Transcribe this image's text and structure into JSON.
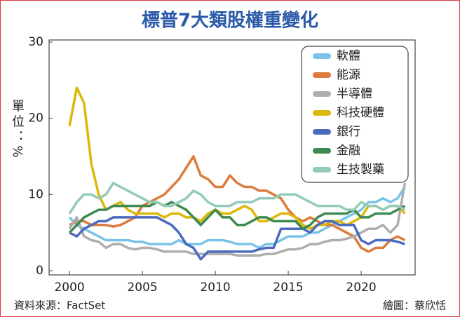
{
  "chart_data": {
    "type": "line",
    "title": "標普7大類股權重變化",
    "y_label": "單位：%",
    "source": "資料來源：FactSet",
    "credit": "繪圖：蔡欣恬",
    "xlim": [
      1998.6,
      2023.7
    ],
    "xticks": [
      2000,
      2005,
      2010,
      2015,
      2020
    ],
    "ylim": [
      0,
      30
    ],
    "yticks": [
      0,
      10,
      20,
      30
    ],
    "x": [
      2000,
      2000.5,
      2001,
      2001.5,
      2002,
      2002.5,
      2003,
      2003.5,
      2004,
      2004.5,
      2005,
      2005.5,
      2006,
      2006.5,
      2007,
      2007.5,
      2008,
      2008.5,
      2009,
      2009.5,
      2010,
      2010.5,
      2011,
      2011.5,
      2012,
      2012.5,
      2013,
      2013.5,
      2014,
      2014.5,
      2015,
      2015.5,
      2016,
      2016.5,
      2017,
      2017.5,
      2018,
      2018.5,
      2019,
      2019.5,
      2020,
      2020.5,
      2021,
      2021.5,
      2022,
      2022.5,
      2023
    ],
    "series": [
      {
        "name": "軟體",
        "color": "#79c4e6",
        "values": [
          7,
          6,
          5.5,
          5,
          4.5,
          4,
          4,
          4,
          4,
          3.8,
          3.8,
          3.5,
          3.5,
          3.5,
          3.5,
          4,
          3.5,
          3.5,
          3.5,
          4,
          4,
          4,
          3.8,
          3.5,
          3.5,
          3.5,
          3,
          3.5,
          3.5,
          4,
          4.5,
          4.5,
          4.5,
          5,
          5,
          5.5,
          6,
          6.5,
          7,
          7.5,
          8,
          9,
          9,
          9.5,
          9,
          9.5,
          11
        ]
      },
      {
        "name": "能源",
        "color": "#dc7c3e",
        "values": [
          6,
          6.5,
          6.5,
          6,
          6,
          6,
          5.8,
          6,
          6.5,
          7,
          8.5,
          9,
          9.5,
          10,
          11,
          12,
          13.5,
          15,
          12.5,
          12,
          11,
          11,
          12.5,
          11.5,
          11,
          11,
          10.5,
          10.5,
          10,
          9.5,
          8,
          7,
          6.5,
          7,
          6.5,
          6,
          6,
          5.5,
          5,
          4.5,
          3,
          2.5,
          3,
          3,
          4,
          4.5,
          4
        ]
      },
      {
        "name": "半導體",
        "color": "#aeaeae",
        "values": [
          5.5,
          7,
          4.5,
          4,
          3.8,
          3,
          3.5,
          3.5,
          3,
          2.8,
          3,
          3,
          2.8,
          2.5,
          2.5,
          2.5,
          2.5,
          2.2,
          2.2,
          2.2,
          2.2,
          2.2,
          2.2,
          2,
          2,
          2,
          2,
          2.2,
          2.2,
          2.5,
          2.8,
          2.8,
          3,
          3.5,
          3.5,
          3.8,
          4,
          4,
          4.2,
          4.5,
          5,
          5.5,
          5.5,
          6,
          5,
          6,
          11.5
        ]
      },
      {
        "name": "科技硬體",
        "color": "#dcb80a",
        "values": [
          19,
          24,
          22,
          14,
          10,
          8,
          8.5,
          9,
          8,
          7.5,
          7.5,
          7.5,
          7.5,
          7,
          7.5,
          7.5,
          7,
          7,
          6.5,
          7.5,
          8,
          7.5,
          7.5,
          8,
          8.5,
          8,
          6.5,
          6.5,
          7,
          7.5,
          7.5,
          7,
          6,
          5.5,
          6,
          6,
          6.5,
          6.5,
          6,
          6.5,
          7,
          8.5,
          8.5,
          8,
          8.5,
          8.5,
          7.5
        ]
      },
      {
        "name": "銀行",
        "color": "#4c6ac0",
        "values": [
          5,
          4.5,
          5.5,
          6,
          6.5,
          6.5,
          7,
          7,
          7,
          7,
          7,
          7,
          7,
          6.5,
          6,
          5,
          3.5,
          3,
          1.5,
          2.5,
          2.5,
          2.5,
          2.5,
          2.5,
          2.5,
          2.5,
          2.8,
          3,
          3,
          5.5,
          5.5,
          5.5,
          5.5,
          5,
          6,
          6.5,
          6.5,
          6,
          6,
          6,
          4,
          3.5,
          4,
          4,
          4,
          3.8,
          3.5
        ]
      },
      {
        "name": "金融",
        "color": "#3f8a50",
        "values": [
          5,
          6,
          7,
          7.5,
          8,
          8,
          8.5,
          8.5,
          8.5,
          8.5,
          8.5,
          8.5,
          9,
          8.5,
          9,
          8.5,
          8,
          7,
          6,
          7,
          8,
          7,
          7,
          6,
          6,
          6.5,
          7,
          7,
          6.5,
          6.5,
          6.5,
          6.5,
          5.5,
          6,
          7,
          7.5,
          7.5,
          7.5,
          7.5,
          8,
          7,
          7,
          7.5,
          7.5,
          7.5,
          8,
          8.5
        ]
      },
      {
        "name": "生技製藥",
        "color": "#93cbb8",
        "values": [
          7.5,
          9,
          10,
          10,
          9.5,
          10,
          11.5,
          11,
          10.5,
          10,
          9.5,
          9,
          9,
          8.5,
          8.5,
          9,
          9.5,
          10.5,
          10,
          9,
          8.5,
          8.5,
          8.5,
          9,
          9,
          9,
          9.5,
          9.5,
          9.5,
          10,
          10,
          10,
          9.5,
          9,
          8.5,
          8.5,
          8.5,
          8.5,
          8,
          8,
          9,
          8.5,
          8.5,
          8,
          8.5,
          8.5,
          8
        ]
      }
    ]
  }
}
